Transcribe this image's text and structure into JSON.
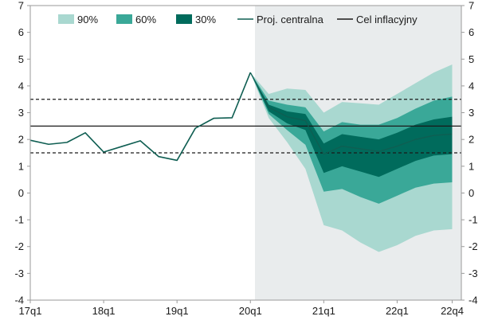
{
  "chart_data": {
    "type": "area",
    "y_range": [
      -4,
      7
    ],
    "y_ticks": [
      "7",
      "6",
      "5",
      "4",
      "3",
      "2",
      "1",
      "0",
      "-1",
      "-2",
      "-3",
      "-4"
    ],
    "x_tick_labels": [
      "17q1",
      "18q1",
      "19q1",
      "20q1",
      "21q1",
      "22q1",
      "22q4"
    ],
    "x_tick_quarter_index": [
      0,
      4,
      8,
      12,
      16,
      20,
      23
    ],
    "projection_start_quarter_index": 12.25,
    "legend": [
      "90%",
      "60%",
      "30%",
      "Proj. centralna",
      "Cel inflacyjny"
    ],
    "colors": {
      "band_90": "#a9d8d0",
      "band_60": "#3aa898",
      "band_30": "#006b5c",
      "central": "#0f5e52",
      "target": "#1a1a1a",
      "shade": "#e9eced"
    },
    "history": {
      "x": [
        0,
        1,
        2,
        3,
        4,
        5,
        6,
        7,
        8,
        9,
        10,
        11,
        12
      ],
      "y": [
        1.97,
        1.82,
        1.89,
        2.25,
        1.53,
        1.74,
        1.95,
        1.36,
        1.22,
        2.42,
        2.79,
        2.81,
        4.5
      ]
    },
    "projection": {
      "x": [
        12,
        13,
        14,
        15,
        16,
        17,
        18,
        19,
        20,
        21,
        22,
        23
      ],
      "central": [
        4.5,
        3.2,
        2.85,
        2.7,
        1.45,
        1.75,
        1.65,
        1.55,
        1.75,
        2.0,
        2.15,
        2.2
      ],
      "band_90": {
        "upper": [
          4.5,
          3.7,
          3.9,
          3.85,
          3.0,
          3.4,
          3.35,
          3.3,
          3.7,
          4.1,
          4.5,
          4.8
        ],
        "lower": [
          4.5,
          2.8,
          1.9,
          0.9,
          -1.2,
          -1.4,
          -1.85,
          -2.2,
          -1.95,
          -1.6,
          -1.4,
          -1.35
        ]
      },
      "band_60": {
        "upper": [
          4.5,
          3.45,
          3.3,
          3.2,
          2.3,
          2.65,
          2.55,
          2.55,
          2.8,
          3.15,
          3.45,
          3.6
        ],
        "lower": [
          4.5,
          2.95,
          2.35,
          1.8,
          0.05,
          0.15,
          -0.15,
          -0.4,
          -0.1,
          0.2,
          0.35,
          0.4
        ]
      },
      "band_30": {
        "upper": [
          4.5,
          3.3,
          3.05,
          2.95,
          1.85,
          2.2,
          2.1,
          2.0,
          2.25,
          2.55,
          2.75,
          2.85
        ],
        "lower": [
          4.5,
          3.05,
          2.6,
          2.35,
          0.75,
          1.0,
          0.8,
          0.6,
          0.9,
          1.2,
          1.4,
          1.45
        ]
      }
    },
    "target": 2.5,
    "tolerance_band": [
      1.5,
      3.5
    ]
  }
}
